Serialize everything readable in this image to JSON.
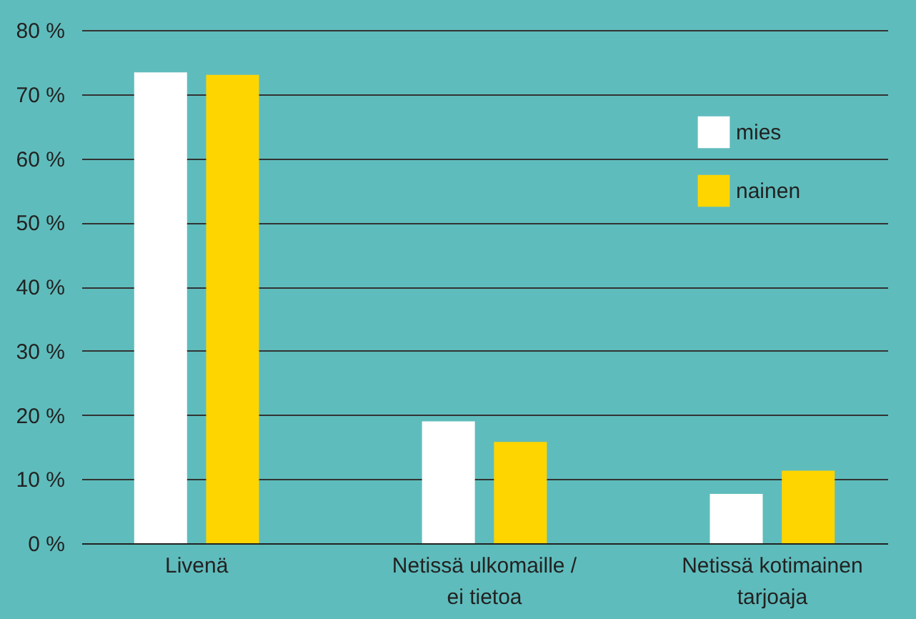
{
  "chart_data": {
    "type": "bar",
    "categories": [
      "Livenä",
      "Netissä ulkomaille / ei tietoa",
      "Netissä kotimainen tarjoaja"
    ],
    "series": [
      {
        "name": "mies",
        "color": "#ffffff",
        "values": [
          73.4,
          19.0,
          7.7
        ]
      },
      {
        "name": "nainen",
        "color": "#ffd500",
        "values": [
          73.0,
          15.8,
          11.3
        ]
      }
    ],
    "ylim": [
      0,
      80
    ],
    "yticks": [
      {
        "value": 0,
        "label": "0 %"
      },
      {
        "value": 10,
        "label": "10 %"
      },
      {
        "value": 20,
        "label": "20 %"
      },
      {
        "value": 30,
        "label": "30 %"
      },
      {
        "value": 40,
        "label": "40 %"
      },
      {
        "value": 50,
        "label": "50 %"
      },
      {
        "value": 60,
        "label": "60 %"
      },
      {
        "value": 70,
        "label": "70 %"
      },
      {
        "value": 80,
        "label": "80 %"
      }
    ],
    "grid": "y",
    "legend": "top right"
  }
}
